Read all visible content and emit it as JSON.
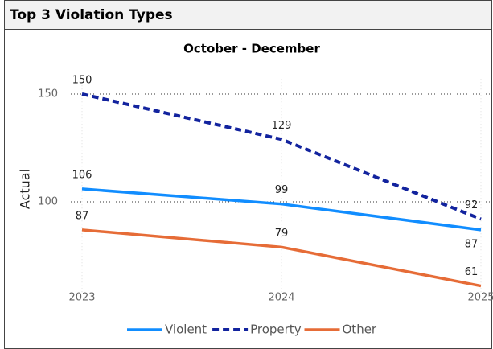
{
  "header": {
    "title": "Top 3 Violation Types"
  },
  "chart_data": {
    "type": "line",
    "title": "October - December",
    "y_label": "Actual",
    "categories": [
      "2023",
      "2024",
      "2025"
    ],
    "series": [
      {
        "name": "Violent",
        "color": "#118dff",
        "dashed": false,
        "values": [
          106,
          99,
          87
        ]
      },
      {
        "name": "Property",
        "color": "#12239e",
        "dashed": true,
        "values": [
          150,
          129,
          92
        ]
      },
      {
        "name": "Other",
        "color": "#e66c37",
        "dashed": false,
        "values": [
          87,
          79,
          61
        ]
      }
    ],
    "ylim": [
      58,
      157
    ],
    "yticks": [
      100,
      150
    ],
    "grid": true,
    "data_labels": true,
    "legend": "bottom"
  }
}
